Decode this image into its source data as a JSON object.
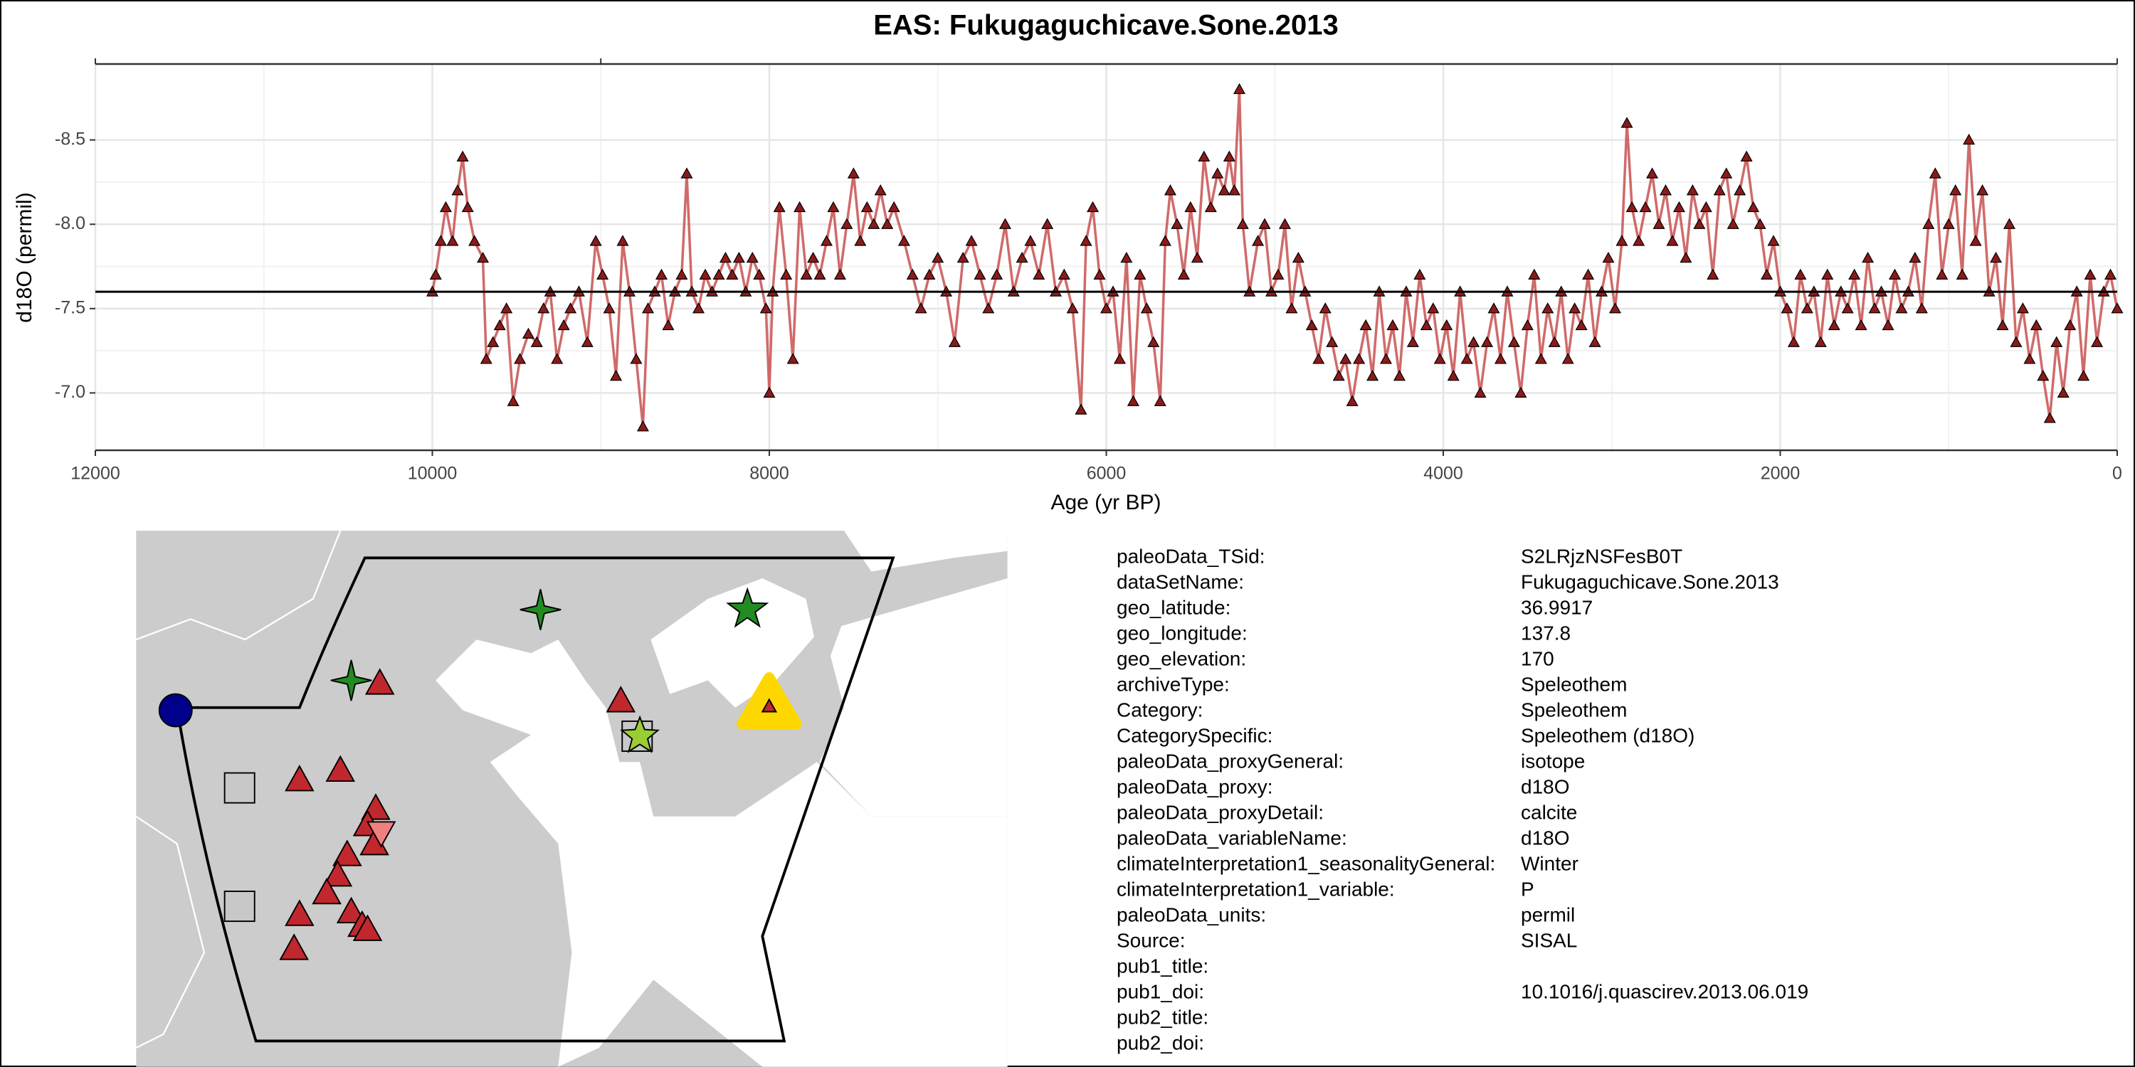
{
  "chart_data": {
    "type": "line",
    "title": "EAS: Fukugaguchicave.Sone.2013",
    "x_label": "Age (yr BP)",
    "y_label": "d18O (permil)",
    "color": "#c85050",
    "marker_color": "#8b1a1a",
    "grid": true,
    "xlim": [
      12000,
      0
    ],
    "xticks": [
      12000,
      10000,
      8000,
      6000,
      4000,
      2000,
      0
    ],
    "ylim": [
      -6.66,
      -8.95
    ],
    "yticks": [
      {
        "value": -8.5,
        "label": "-8.5"
      },
      {
        "value": -8,
        "label": "-8.0"
      },
      {
        "value": -7.5,
        "label": "-7.5"
      },
      {
        "value": -7,
        "label": "-7.0"
      }
    ],
    "reference_line": -7.6,
    "x": [
      10000,
      9980,
      9950,
      9920,
      9880,
      9850,
      9820,
      9790,
      9750,
      9700,
      9680,
      9640,
      9600,
      9560,
      9520,
      9480,
      9430,
      9380,
      9340,
      9300,
      9260,
      9220,
      9180,
      9130,
      9080,
      9030,
      8990,
      8950,
      8910,
      8870,
      8830,
      8790,
      8750,
      8720,
      8680,
      8640,
      8600,
      8560,
      8520,
      8490,
      8460,
      8420,
      8380,
      8340,
      8300,
      8260,
      8220,
      8180,
      8140,
      8100,
      8060,
      8020,
      8000,
      7980,
      7940,
      7900,
      7860,
      7820,
      7780,
      7740,
      7700,
      7660,
      7620,
      7580,
      7540,
      7500,
      7460,
      7420,
      7380,
      7340,
      7300,
      7260,
      7200,
      7150,
      7100,
      7050,
      7000,
      6950,
      6900,
      6850,
      6800,
      6750,
      6700,
      6650,
      6600,
      6550,
      6500,
      6450,
      6400,
      6350,
      6300,
      6250,
      6200,
      6150,
      6120,
      6080,
      6040,
      6000,
      5960,
      5920,
      5880,
      5840,
      5800,
      5760,
      5720,
      5680,
      5650,
      5620,
      5580,
      5540,
      5500,
      5460,
      5420,
      5380,
      5340,
      5300,
      5270,
      5240,
      5210,
      5190,
      5150,
      5100,
      5060,
      5020,
      4980,
      4940,
      4900,
      4860,
      4820,
      4780,
      4740,
      4700,
      4660,
      4620,
      4580,
      4540,
      4500,
      4460,
      4420,
      4380,
      4340,
      4300,
      4260,
      4220,
      4180,
      4140,
      4100,
      4060,
      4020,
      3980,
      3940,
      3900,
      3860,
      3820,
      3780,
      3740,
      3700,
      3660,
      3620,
      3580,
      3540,
      3500,
      3460,
      3420,
      3380,
      3340,
      3300,
      3260,
      3220,
      3180,
      3140,
      3100,
      3060,
      3020,
      2980,
      2940,
      2910,
      2880,
      2840,
      2800,
      2760,
      2720,
      2680,
      2640,
      2600,
      2560,
      2520,
      2480,
      2440,
      2400,
      2360,
      2320,
      2280,
      2240,
      2200,
      2160,
      2120,
      2080,
      2040,
      2000,
      1960,
      1920,
      1880,
      1840,
      1800,
      1760,
      1720,
      1680,
      1640,
      1600,
      1560,
      1520,
      1480,
      1440,
      1400,
      1360,
      1320,
      1280,
      1240,
      1200,
      1160,
      1120,
      1080,
      1040,
      1000,
      960,
      920,
      880,
      840,
      800,
      760,
      720,
      680,
      640,
      600,
      560,
      520,
      480,
      440,
      400,
      360,
      320,
      280,
      240,
      200,
      160,
      120,
      80,
      40,
      0
    ],
    "values": [
      -7.6,
      -7.7,
      -7.9,
      -8.1,
      -7.9,
      -8.2,
      -8.4,
      -8.1,
      -7.9,
      -7.8,
      -7.2,
      -7.3,
      -7.4,
      -7.5,
      -6.95,
      -7.2,
      -7.35,
      -7.3,
      -7.5,
      -7.6,
      -7.2,
      -7.4,
      -7.5,
      -7.6,
      -7.3,
      -7.9,
      -7.7,
      -7.5,
      -7.1,
      -7.9,
      -7.6,
      -7.2,
      -6.8,
      -7.5,
      -7.6,
      -7.7,
      -7.4,
      -7.6,
      -7.7,
      -8.3,
      -7.6,
      -7.5,
      -7.7,
      -7.6,
      -7.7,
      -7.8,
      -7.7,
      -7.8,
      -7.6,
      -7.8,
      -7.7,
      -7.5,
      -7.0,
      -7.6,
      -8.1,
      -7.7,
      -7.2,
      -8.1,
      -7.7,
      -7.8,
      -7.7,
      -7.9,
      -8.1,
      -7.7,
      -8.0,
      -8.3,
      -7.9,
      -8.1,
      -8.0,
      -8.2,
      -8.0,
      -8.1,
      -7.9,
      -7.7,
      -7.5,
      -7.7,
      -7.8,
      -7.6,
      -7.3,
      -7.8,
      -7.9,
      -7.7,
      -7.5,
      -7.7,
      -8.0,
      -7.6,
      -7.8,
      -7.9,
      -7.7,
      -8.0,
      -7.6,
      -7.7,
      -7.5,
      -6.9,
      -7.9,
      -8.1,
      -7.7,
      -7.5,
      -7.6,
      -7.2,
      -7.8,
      -6.95,
      -7.7,
      -7.5,
      -7.3,
      -6.95,
      -7.9,
      -8.2,
      -8.0,
      -7.7,
      -8.1,
      -7.8,
      -8.4,
      -8.1,
      -8.3,
      -8.2,
      -8.4,
      -8.2,
      -8.8,
      -8.0,
      -7.6,
      -7.9,
      -8.0,
      -7.6,
      -7.7,
      -8.0,
      -7.5,
      -7.8,
      -7.6,
      -7.4,
      -7.2,
      -7.5,
      -7.3,
      -7.1,
      -7.2,
      -6.95,
      -7.2,
      -7.4,
      -7.1,
      -7.6,
      -7.2,
      -7.4,
      -7.1,
      -7.6,
      -7.3,
      -7.7,
      -7.4,
      -7.5,
      -7.2,
      -7.4,
      -7.1,
      -7.6,
      -7.2,
      -7.3,
      -7.0,
      -7.3,
      -7.5,
      -7.2,
      -7.6,
      -7.3,
      -7.0,
      -7.4,
      -7.7,
      -7.2,
      -7.5,
      -7.3,
      -7.6,
      -7.2,
      -7.5,
      -7.4,
      -7.7,
      -7.3,
      -7.6,
      -7.8,
      -7.5,
      -7.9,
      -8.6,
      -8.1,
      -7.9,
      -8.1,
      -8.3,
      -8.0,
      -8.2,
      -7.9,
      -8.1,
      -7.8,
      -8.2,
      -8.0,
      -8.1,
      -7.7,
      -8.2,
      -8.3,
      -8.0,
      -8.2,
      -8.4,
      -8.1,
      -8.0,
      -7.7,
      -7.9,
      -7.6,
      -7.5,
      -7.3,
      -7.7,
      -7.5,
      -7.6,
      -7.3,
      -7.7,
      -7.4,
      -7.6,
      -7.5,
      -7.7,
      -7.4,
      -7.8,
      -7.5,
      -7.6,
      -7.4,
      -7.7,
      -7.5,
      -7.6,
      -7.8,
      -7.5,
      -8.0,
      -8.3,
      -7.7,
      -8.0,
      -8.2,
      -7.7,
      -8.5,
      -7.9,
      -8.2,
      -7.6,
      -7.8,
      -7.4,
      -8.0,
      -7.3,
      -7.5,
      -7.2,
      -7.4,
      -7.1,
      -6.85,
      -7.3,
      -7.0,
      -7.4,
      -7.6,
      -7.1,
      -7.7,
      -7.3,
      -7.6,
      -7.7,
      -7.5
    ]
  },
  "metadata": {
    "rows": [
      {
        "key": "paleoData_TSid:",
        "value": "S2LRjzNSFesB0T"
      },
      {
        "key": "dataSetName:",
        "value": "Fukugaguchicave.Sone.2013"
      },
      {
        "key": "geo_latitude:",
        "value": "36.9917"
      },
      {
        "key": "geo_longitude:",
        "value": "137.8"
      },
      {
        "key": "geo_elevation:",
        "value": "170"
      },
      {
        "key": "archiveType:",
        "value": "Speleothem"
      },
      {
        "key": "Category:",
        "value": "Speleothem"
      },
      {
        "key": "CategorySpecific:",
        "value": "Speleothem (d18O)"
      },
      {
        "key": "paleoData_proxyGeneral:",
        "value": "isotope"
      },
      {
        "key": "paleoData_proxy:",
        "value": "d18O"
      },
      {
        "key": "paleoData_proxyDetail:",
        "value": "calcite"
      },
      {
        "key": "paleoData_variableName:",
        "value": "d18O"
      },
      {
        "key": "climateInterpretation1_seasonalityGeneral:",
        "value": "Winter"
      },
      {
        "key": "climateInterpretation1_variable:",
        "value": "P"
      },
      {
        "key": "paleoData_units:",
        "value": "permil"
      },
      {
        "key": "Source:",
        "value": "SISAL"
      },
      {
        "key": "pub1_title:"
      },
      {
        "key": "pub1_doi:",
        "value": "10.1016/j.quascirev.2013.06.019"
      },
      {
        "key": "pub2_title:"
      },
      {
        "key": "pub2_doi:"
      }
    ]
  }
}
